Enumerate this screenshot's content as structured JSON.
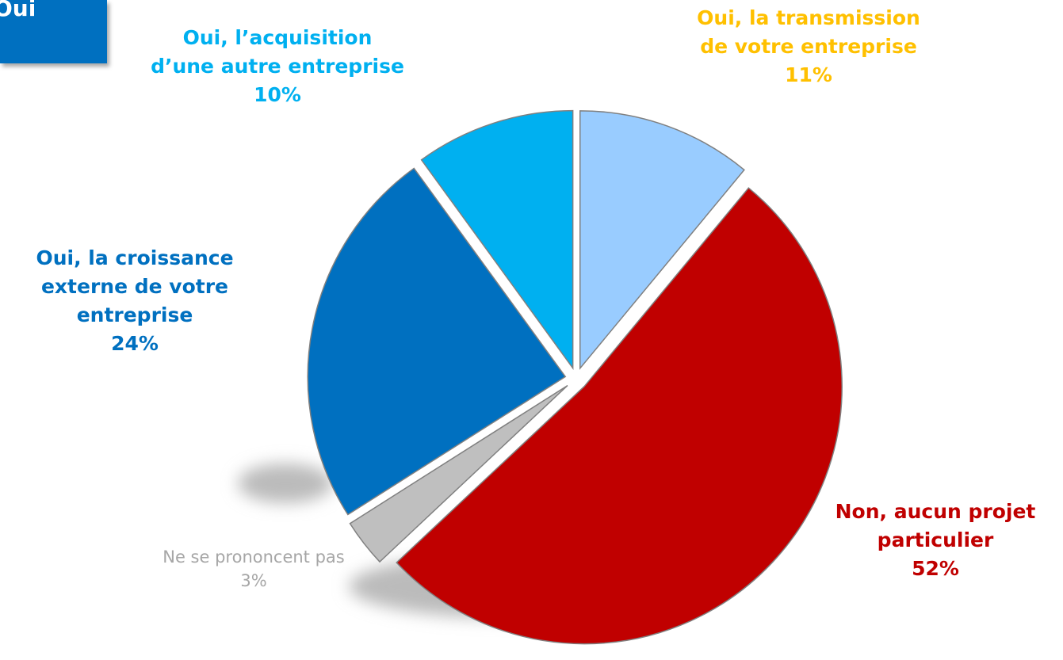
{
  "badge": "Oui",
  "chart_data": {
    "type": "pie",
    "categories": [
      "Oui, la transmission de votre entreprise",
      "Non, aucun projet particulier",
      "Ne se prononcent pas",
      "Oui, la croissance externe de votre entreprise",
      "Oui, l’acquisition d’une autre entreprise"
    ],
    "values": [
      11,
      52,
      3,
      24,
      10
    ],
    "value_labels": [
      "11%",
      "52%",
      "3%",
      "24%",
      "10%"
    ],
    "colors": [
      "#99ccff",
      "#c00000",
      "#bfbfbf",
      "#0070c0",
      "#00b0f0"
    ],
    "label_colors": [
      "#ffc000",
      "#c00000",
      "#a6a6a6",
      "#0070c0",
      "#00b0f0"
    ]
  }
}
